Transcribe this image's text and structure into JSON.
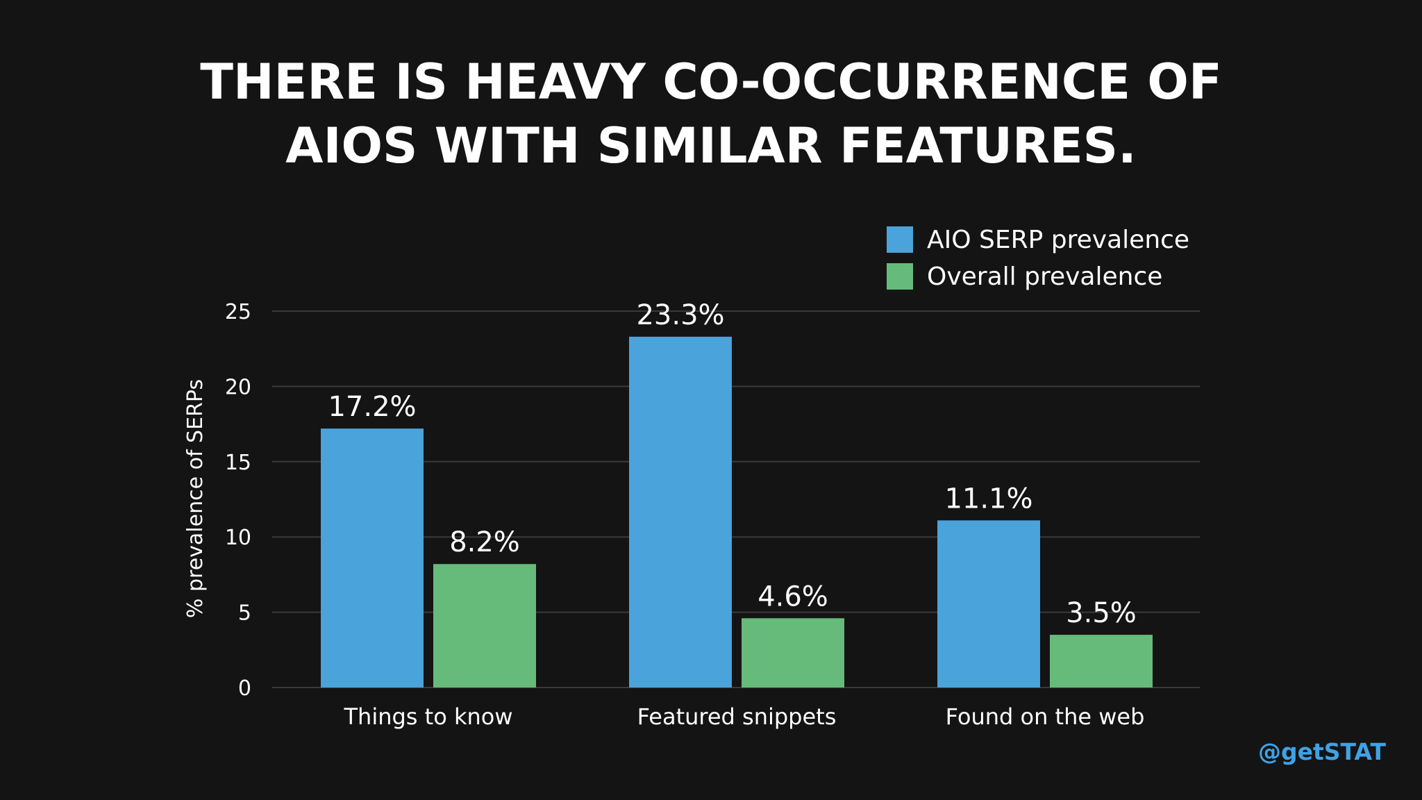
{
  "title_lines": [
    "THERE IS HEAVY CO-OCCURRENCE OF",
    "AIOS WITH SIMILAR FEATURES."
  ],
  "handle": "@getSTAT",
  "colors": {
    "background": "#141414",
    "series_aio": "#4aa3db",
    "series_overall": "#66bb7b",
    "grid": "#3a3a3a",
    "handle": "#3ea2e6"
  },
  "chart_data": {
    "type": "bar",
    "title": "",
    "xlabel": "",
    "ylabel": "% prevalence of SERPs",
    "ylim": [
      0,
      25
    ],
    "yticks": [
      0,
      5,
      10,
      15,
      20,
      25
    ],
    "grid": true,
    "legend_position": "top-right",
    "categories": [
      "Things to know",
      "Featured snippets",
      "Found on the web"
    ],
    "series": [
      {
        "name": "AIO SERP prevalence",
        "values": [
          17.2,
          23.3,
          11.1
        ],
        "labels": [
          "17.2%",
          "23.3%",
          "11.1%"
        ],
        "color": "#4aa3db"
      },
      {
        "name": "Overall prevalence",
        "values": [
          8.2,
          4.6,
          3.5
        ],
        "labels": [
          "8.2%",
          "4.6%",
          "3.5%"
        ],
        "color": "#66bb7b"
      }
    ]
  }
}
